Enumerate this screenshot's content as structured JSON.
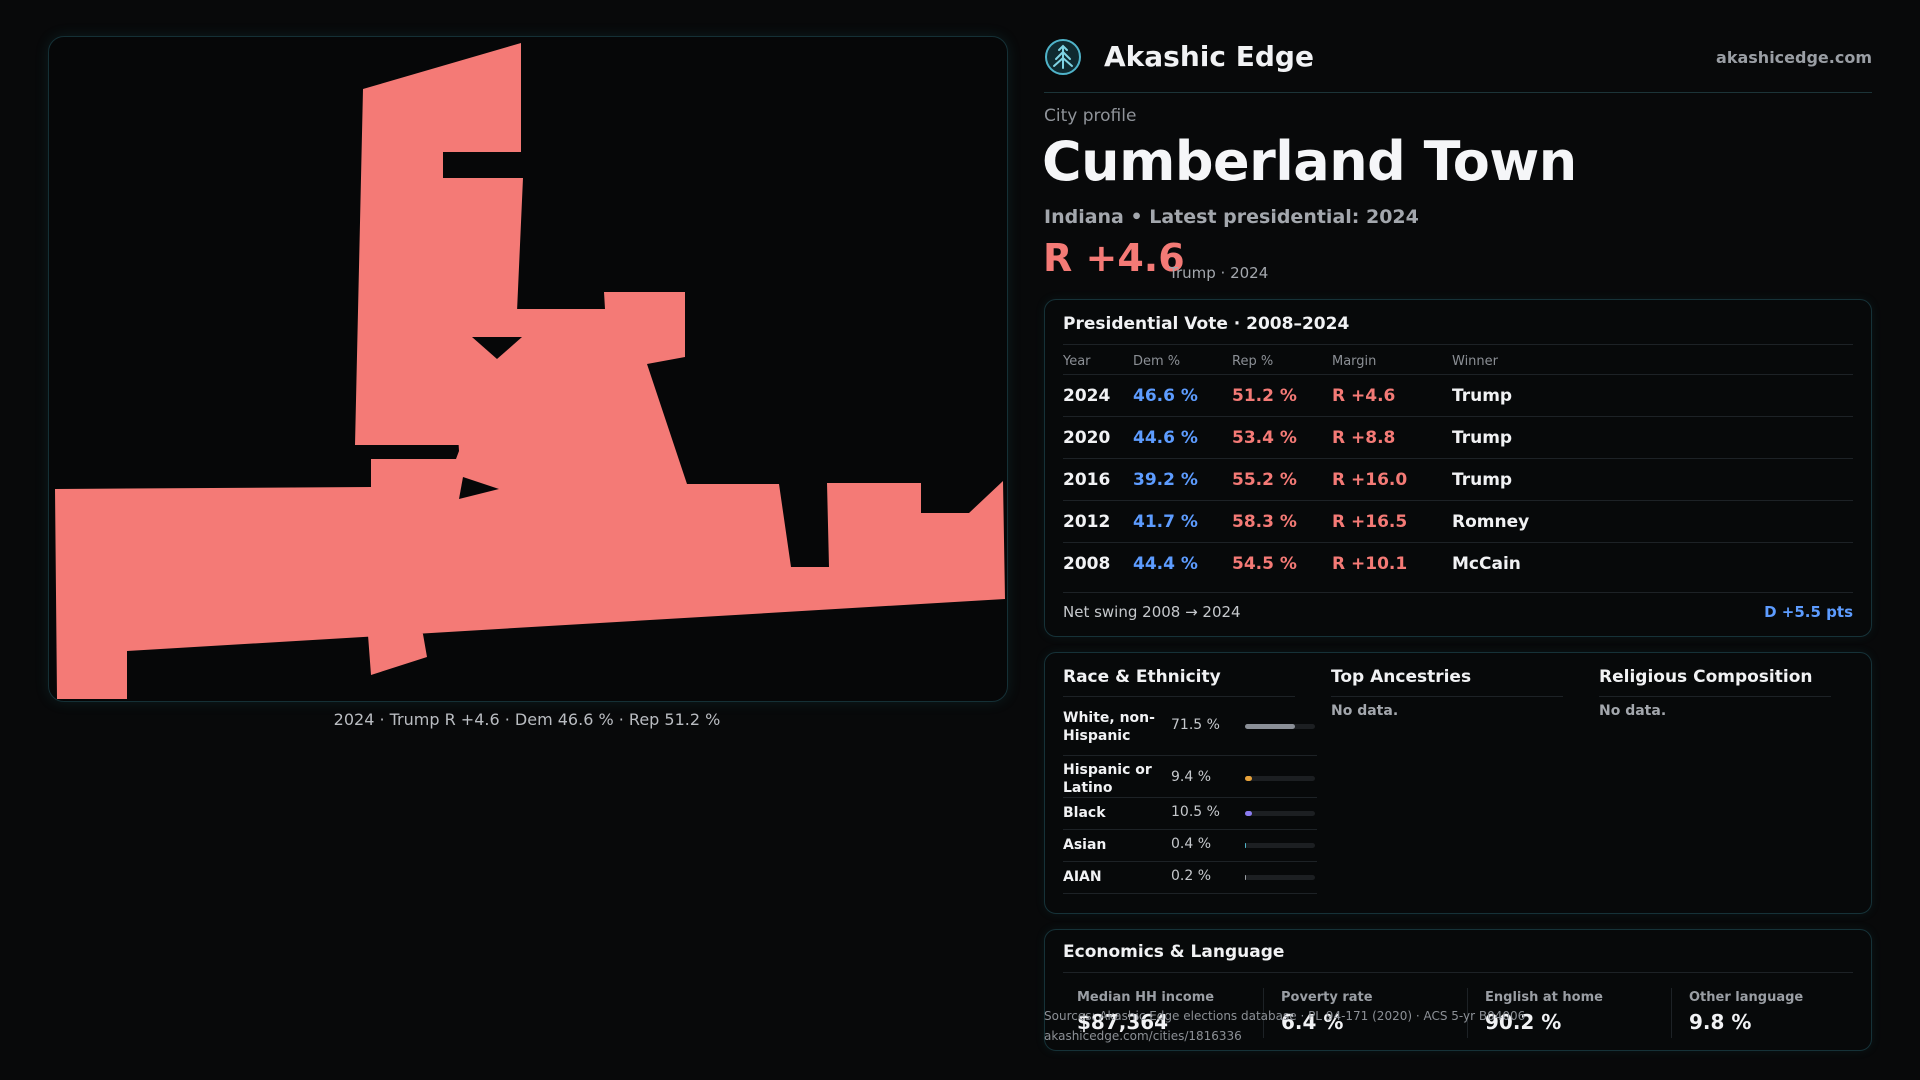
{
  "map": {
    "caption": "2024 · Trump R +4.6 · Dem 46.6 % · Rep 51.2 %",
    "fill_color": "#f47a76"
  },
  "brand": {
    "name": "Akashic Edge",
    "url": "akashicedge.com",
    "logo_icon": "tree-logo-icon"
  },
  "profile": {
    "kicker": "City profile",
    "city": "Cumberland Town",
    "subtitle": "Indiana • Latest presidential: 2024",
    "margin": "R +4.6",
    "margin_note": "Trump · 2024"
  },
  "presidential": {
    "title": "Presidential Vote · 2008–2024",
    "headers": [
      "Year",
      "Dem %",
      "Rep %",
      "Margin",
      "Winner"
    ],
    "rows": [
      {
        "year": "2024",
        "dem": "46.6 %",
        "rep": "51.2 %",
        "margin": "R +4.6",
        "winner": "Trump"
      },
      {
        "year": "2020",
        "dem": "44.6 %",
        "rep": "53.4 %",
        "margin": "R +8.8",
        "winner": "Trump"
      },
      {
        "year": "2016",
        "dem": "39.2 %",
        "rep": "55.2 %",
        "margin": "R +16.0",
        "winner": "Trump"
      },
      {
        "year": "2012",
        "dem": "41.7 %",
        "rep": "58.3 %",
        "margin": "R +16.5",
        "winner": "Romney"
      },
      {
        "year": "2008",
        "dem": "44.4 %",
        "rep": "54.5 %",
        "margin": "R +10.1",
        "winner": "McCain"
      }
    ],
    "swing_label": "Net swing 2008 → 2024",
    "swing_value": "D +5.5 pts"
  },
  "race": {
    "title": "Race & Ethnicity",
    "rows": [
      {
        "name": "White, non-Hispanic",
        "pct": "71.5 %",
        "share": 0.715,
        "color": "#8a8f97"
      },
      {
        "name": "Hispanic or Latino",
        "pct": "9.4 %",
        "share": 0.094,
        "color": "#e7a23b"
      },
      {
        "name": "Black",
        "pct": "10.5 %",
        "share": 0.105,
        "color": "#8b7cf0"
      },
      {
        "name": "Asian",
        "pct": "0.4 %",
        "share": 0.004,
        "color": "#4fb3c9"
      },
      {
        "name": "AIAN",
        "pct": "0.2 %",
        "share": 0.002,
        "color": "#9a9ea4"
      }
    ]
  },
  "ancestries": {
    "title": "Top Ancestries",
    "empty": "No data."
  },
  "religion": {
    "title": "Religious Composition",
    "empty": "No data."
  },
  "economics": {
    "title": "Economics & Language",
    "stats": [
      {
        "label": "Median HH income",
        "value": "$87,364"
      },
      {
        "label": "Poverty rate",
        "value": "6.4 %"
      },
      {
        "label": "English at home",
        "value": "90.2 %"
      },
      {
        "label": "Other language",
        "value": "9.8 %"
      }
    ]
  },
  "source": {
    "line1": "Sources: Akashic Edge elections database · PL 94-171 (2020) · ACS 5-yr B04006",
    "line2": "akashicedge.com/cities/1816336"
  }
}
